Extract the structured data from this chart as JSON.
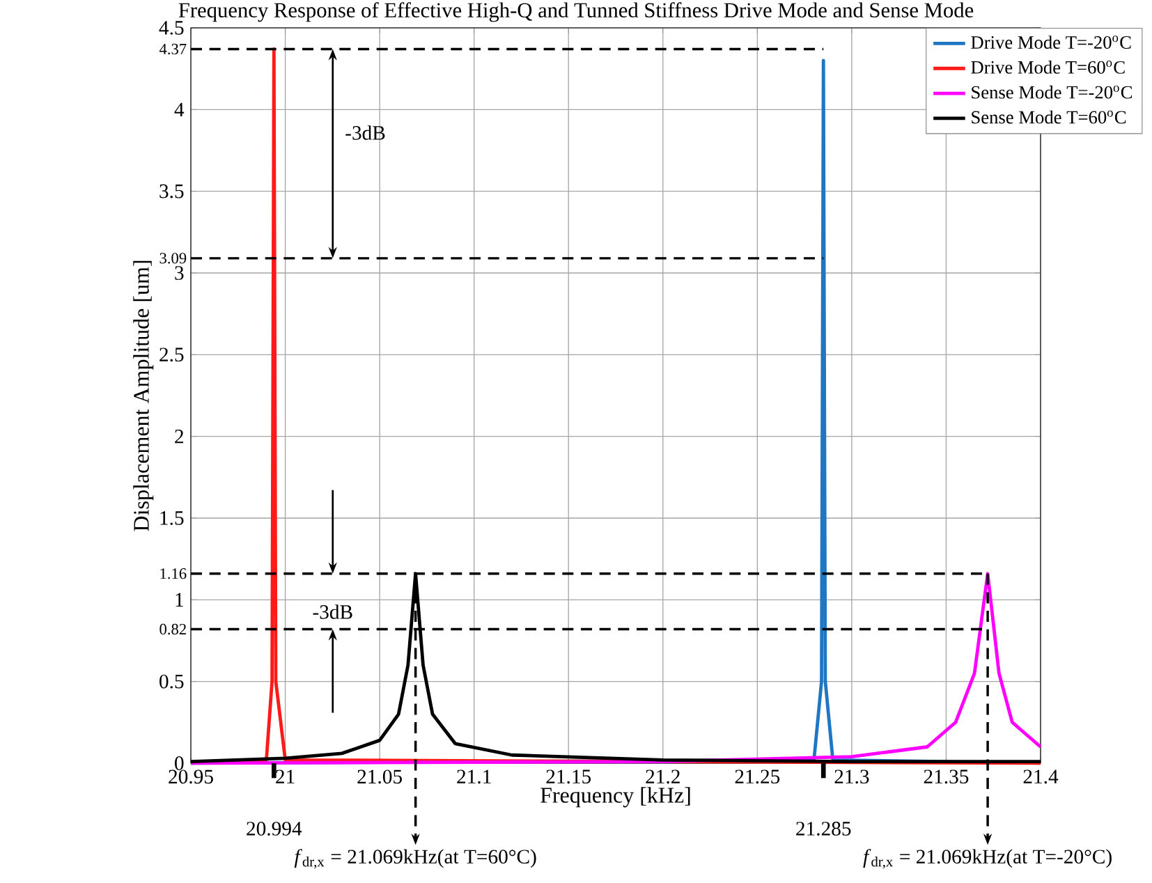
{
  "chart_data": {
    "type": "line",
    "title": "Frequency Response of Effective High-Q and Tunned Stiffness Drive Mode and Sense Mode",
    "xlabel": "Frequency [kHz]",
    "ylabel": "Displacement Amplitude [um]",
    "xlim": [
      20.95,
      21.4
    ],
    "ylim": [
      0,
      4.5
    ],
    "xticks": [
      20.95,
      21,
      21.05,
      21.1,
      21.15,
      21.2,
      21.25,
      21.3,
      21.35,
      21.4
    ],
    "yticks": [
      0,
      0.5,
      1,
      1.5,
      2,
      2.5,
      3,
      3.5,
      4,
      4.5
    ],
    "grid": true,
    "legend": "top right",
    "series": [
      {
        "name": "Drive Mode T=-20$^{o}$C",
        "color": "#1f77c4",
        "x": [
          20.95,
          21.28,
          21.284,
          21.285,
          21.286,
          21.29,
          21.4
        ],
        "values": [
          0,
          0.02,
          0.5,
          4.3,
          0.5,
          0.02,
          0
        ]
      },
      {
        "name": "Drive Mode T=60$^{o}$C",
        "color": "#ff1a1a",
        "x": [
          20.95,
          20.99,
          20.993,
          20.994,
          20.995,
          21.0,
          21.4
        ],
        "values": [
          0,
          0.02,
          0.5,
          4.37,
          0.5,
          0.02,
          0
        ]
      },
      {
        "name": "Sense Mode T=-20$^{o}$C",
        "color": "#ff00ff",
        "x": [
          20.95,
          21.2,
          21.3,
          21.34,
          21.355,
          21.365,
          21.372,
          21.378,
          21.385,
          21.4
        ],
        "values": [
          0,
          0.01,
          0.04,
          0.1,
          0.25,
          0.55,
          1.16,
          0.55,
          0.25,
          0.1
        ]
      },
      {
        "name": "Sense Mode T=60$^{o}$C",
        "color": "#000000",
        "x": [
          20.95,
          21.0,
          21.03,
          21.05,
          21.06,
          21.065,
          21.069,
          21.073,
          21.078,
          21.09,
          21.12,
          21.2,
          21.3,
          21.4
        ],
        "values": [
          0.01,
          0.03,
          0.06,
          0.14,
          0.3,
          0.6,
          1.16,
          0.6,
          0.3,
          0.12,
          0.05,
          0.02,
          0.01,
          0.01
        ]
      },
      {
        "color": "#000000",
        "line_style": "dashed",
        "x": [
          20.95,
          21.285
        ],
        "values": [
          4.37,
          4.37
        ]
      },
      {
        "color": "#000000",
        "line_style": "dashed",
        "x": [
          20.95,
          21.285
        ],
        "values": [
          3.09,
          3.09
        ]
      },
      {
        "color": "#000000",
        "line_style": "dashed",
        "x": [
          20.95,
          21.372
        ],
        "values": [
          1.16,
          1.16
        ]
      },
      {
        "color": "#000000",
        "line_style": "dashed",
        "x": [
          20.95,
          21.372
        ],
        "values": [
          0.82,
          0.82
        ]
      }
    ],
    "annotations": [
      {
        "text": "4.37",
        "x": 20.95,
        "y": 4.37
      },
      {
        "text": "3.09",
        "x": 20.95,
        "y": 3.09
      },
      {
        "text": "1.16",
        "x": 20.95,
        "y": 1.16
      },
      {
        "text": "0.82",
        "x": 20.95,
        "y": 0.82
      },
      "-3dB",
      "-3dB",
      {
        "text": "20.994",
        "x": 20.994,
        "y": 0
      },
      {
        "text": "21.285",
        "x": 21.285,
        "y": 0
      },
      {
        "text": "*f*$_{dr,x}$ = 21.069kHz(at T=60°C)",
        "x": 21.069,
        "y": 1.16
      },
      {
        "text": "*f*$_{dr,x}$ = 21.069kHz(at T=-20°C)",
        "x": 21.372,
        "y": 1.16
      }
    ]
  }
}
